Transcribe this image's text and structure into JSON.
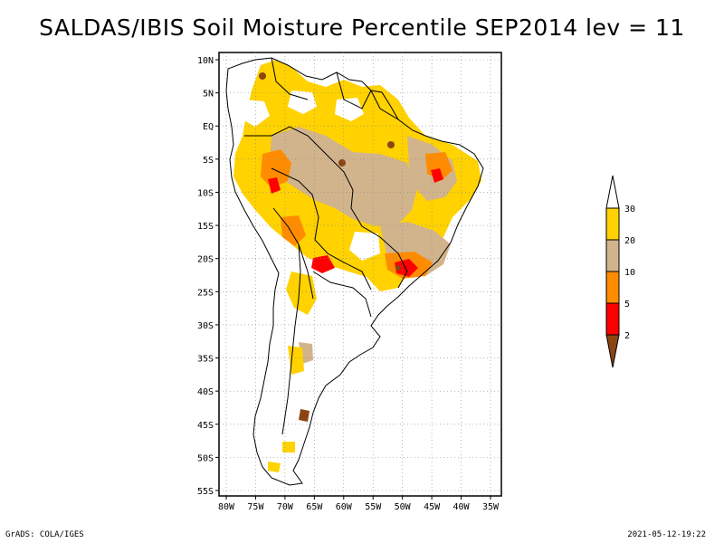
{
  "title": "SALDAS/IBIS Soil Moisture Percentile SEP2014 lev = 11",
  "footer": {
    "left": "GrADS: COLA/IGES",
    "right": "2021-05-12-19:22"
  },
  "axes": {
    "lat_labels": [
      "10N",
      "5N",
      "EQ",
      "5S",
      "10S",
      "15S",
      "20S",
      "25S",
      "30S",
      "35S",
      "40S",
      "45S",
      "50S",
      "55S"
    ],
    "lon_labels": [
      "80W",
      "75W",
      "70W",
      "65W",
      "60W",
      "55W",
      "50W",
      "45W",
      "40W",
      "35W"
    ],
    "lat_range": [
      10,
      -55
    ],
    "lon_range": [
      -80,
      -35
    ]
  },
  "legend": {
    "bins": [
      {
        "label": "30",
        "color": "#ffffff"
      },
      {
        "label": "20",
        "color": "#ffd200"
      },
      {
        "label": "10",
        "color": "#d2b48c"
      },
      {
        "label": "5",
        "color": "#ff8c00"
      },
      {
        "label": "2",
        "color": "#ff0000"
      },
      {
        "label": "",
        "color": "#8b4513"
      }
    ],
    "tick_labels": [
      "30",
      "20",
      "10",
      "5",
      "2"
    ]
  },
  "colors": {
    "gold": "#ffd200",
    "tan": "#d2b48c",
    "orange": "#ff8c00",
    "red": "#ff0000",
    "brown": "#8b4513"
  },
  "map_data": {
    "region": "South America",
    "variable": "Soil Moisture Percentile",
    "period": "SEP2014",
    "level": 11
  }
}
